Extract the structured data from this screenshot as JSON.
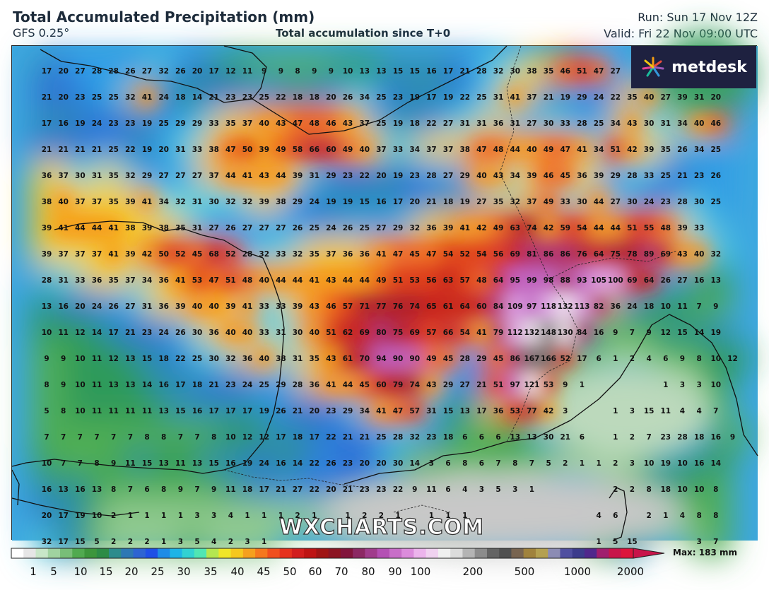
{
  "header": {
    "title": "Total Accumulated Precipitation (mm)",
    "model": "GFS 0.25°",
    "subtitle": "Total accumulation since T+0",
    "run": "Run: Sun 17 Nov 12Z",
    "valid": "Valid: Fri 22 Nov 09:00 UTC"
  },
  "logo": {
    "text": "metdesk"
  },
  "watermark": "WXCHARTS.COM",
  "legend": {
    "max_label": "Max: 183 mm",
    "tick_labels": [
      "1",
      "5",
      "10",
      "15",
      "20",
      "25",
      "30",
      "35",
      "40",
      "45",
      "50",
      "60",
      "70",
      "80",
      "90",
      "100",
      "200",
      "500",
      "1000",
      "2000"
    ]
  },
  "grid": {
    "rows": [
      [
        "17",
        "20",
        "27",
        "28",
        "28",
        "26",
        "27",
        "32",
        "26",
        "20",
        "17",
        "12",
        "11",
        "9",
        "9",
        "8",
        "9",
        "9",
        "10",
        "13",
        "13",
        "15",
        "15",
        "16",
        "17",
        "21",
        "28",
        "32",
        "30",
        "38",
        "35",
        "46",
        "51",
        "47",
        "27",
        "",
        "",
        "",
        "",
        ""
      ],
      [
        "21",
        "20",
        "23",
        "25",
        "25",
        "32",
        "41",
        "24",
        "18",
        "14",
        "21",
        "23",
        "23",
        "25",
        "22",
        "18",
        "18",
        "20",
        "26",
        "34",
        "25",
        "23",
        "19",
        "17",
        "19",
        "22",
        "25",
        "31",
        "41",
        "37",
        "21",
        "19",
        "29",
        "24",
        "22",
        "35",
        "40",
        "27",
        "39",
        "31",
        "20"
      ],
      [
        "17",
        "16",
        "19",
        "24",
        "23",
        "23",
        "19",
        "25",
        "29",
        "29",
        "33",
        "35",
        "37",
        "40",
        "43",
        "47",
        "48",
        "46",
        "43",
        "37",
        "25",
        "19",
        "18",
        "22",
        "27",
        "31",
        "31",
        "36",
        "31",
        "27",
        "30",
        "33",
        "28",
        "25",
        "34",
        "43",
        "30",
        "31",
        "34",
        "40",
        "46"
      ],
      [
        "21",
        "21",
        "21",
        "21",
        "25",
        "22",
        "19",
        "20",
        "31",
        "33",
        "38",
        "47",
        "50",
        "39",
        "49",
        "58",
        "66",
        "60",
        "49",
        "40",
        "37",
        "33",
        "34",
        "37",
        "37",
        "38",
        "47",
        "48",
        "44",
        "40",
        "49",
        "47",
        "41",
        "34",
        "51",
        "42",
        "39",
        "35",
        "26",
        "34",
        "25"
      ],
      [
        "36",
        "37",
        "30",
        "31",
        "35",
        "32",
        "29",
        "27",
        "27",
        "27",
        "37",
        "44",
        "41",
        "43",
        "44",
        "39",
        "31",
        "29",
        "23",
        "22",
        "20",
        "19",
        "23",
        "28",
        "27",
        "29",
        "40",
        "43",
        "34",
        "39",
        "46",
        "45",
        "36",
        "39",
        "29",
        "28",
        "33",
        "25",
        "21",
        "23",
        "26"
      ],
      [
        "38",
        "40",
        "37",
        "37",
        "35",
        "39",
        "41",
        "34",
        "32",
        "31",
        "30",
        "32",
        "32",
        "39",
        "38",
        "29",
        "24",
        "19",
        "19",
        "15",
        "16",
        "17",
        "20",
        "21",
        "18",
        "19",
        "27",
        "35",
        "32",
        "37",
        "49",
        "33",
        "30",
        "44",
        "27",
        "30",
        "24",
        "23",
        "28",
        "30",
        "25"
      ],
      [
        "39",
        "41",
        "44",
        "44",
        "41",
        "38",
        "39",
        "38",
        "35",
        "31",
        "27",
        "26",
        "27",
        "27",
        "27",
        "26",
        "25",
        "24",
        "26",
        "25",
        "27",
        "29",
        "32",
        "36",
        "39",
        "41",
        "42",
        "49",
        "63",
        "74",
        "42",
        "59",
        "54",
        "44",
        "44",
        "51",
        "55",
        "48",
        "39",
        "33"
      ],
      [
        "39",
        "37",
        "37",
        "37",
        "41",
        "39",
        "42",
        "50",
        "52",
        "45",
        "68",
        "52",
        "28",
        "32",
        "33",
        "32",
        "35",
        "37",
        "36",
        "36",
        "41",
        "47",
        "45",
        "47",
        "54",
        "52",
        "54",
        "56",
        "69",
        "81",
        "86",
        "86",
        "76",
        "64",
        "75",
        "78",
        "89",
        "69",
        "43",
        "40",
        "32"
      ],
      [
        "28",
        "31",
        "33",
        "36",
        "35",
        "37",
        "34",
        "36",
        "41",
        "53",
        "47",
        "51",
        "48",
        "40",
        "44",
        "44",
        "41",
        "43",
        "44",
        "44",
        "49",
        "51",
        "53",
        "56",
        "63",
        "57",
        "48",
        "64",
        "95",
        "99",
        "98",
        "88",
        "93",
        "105",
        "100",
        "69",
        "64",
        "26",
        "27",
        "16",
        "13"
      ],
      [
        "13",
        "16",
        "20",
        "24",
        "26",
        "27",
        "31",
        "36",
        "39",
        "40",
        "40",
        "39",
        "41",
        "33",
        "33",
        "39",
        "43",
        "46",
        "57",
        "71",
        "77",
        "76",
        "74",
        "65",
        "61",
        "64",
        "60",
        "84",
        "109",
        "97",
        "118",
        "132",
        "113",
        "82",
        "36",
        "24",
        "18",
        "10",
        "11",
        "7",
        "9"
      ],
      [
        "10",
        "11",
        "12",
        "14",
        "17",
        "21",
        "23",
        "24",
        "26",
        "30",
        "36",
        "40",
        "40",
        "33",
        "31",
        "30",
        "40",
        "51",
        "62",
        "69",
        "80",
        "75",
        "69",
        "57",
        "66",
        "54",
        "41",
        "79",
        "112",
        "132",
        "148",
        "130",
        "84",
        "16",
        "9",
        "7",
        "9",
        "12",
        "15",
        "14",
        "19"
      ],
      [
        "9",
        "9",
        "10",
        "11",
        "12",
        "13",
        "15",
        "18",
        "22",
        "25",
        "30",
        "32",
        "36",
        "40",
        "38",
        "31",
        "35",
        "43",
        "61",
        "70",
        "94",
        "90",
        "90",
        "49",
        "45",
        "28",
        "29",
        "45",
        "86",
        "167",
        "166",
        "52",
        "17",
        "6",
        "1",
        "2",
        "4",
        "6",
        "9",
        "8",
        "10",
        "12"
      ],
      [
        "8",
        "9",
        "10",
        "11",
        "13",
        "13",
        "14",
        "16",
        "17",
        "18",
        "21",
        "23",
        "24",
        "25",
        "29",
        "28",
        "36",
        "41",
        "44",
        "45",
        "60",
        "79",
        "74",
        "43",
        "29",
        "27",
        "21",
        "51",
        "97",
        "121",
        "53",
        "9",
        "1",
        "",
        "",
        "",
        "",
        "1",
        "3",
        "3",
        "10"
      ],
      [
        "5",
        "8",
        "10",
        "11",
        "11",
        "11",
        "11",
        "13",
        "15",
        "16",
        "17",
        "17",
        "17",
        "19",
        "26",
        "21",
        "20",
        "23",
        "29",
        "34",
        "41",
        "47",
        "57",
        "31",
        "15",
        "13",
        "17",
        "36",
        "53",
        "77",
        "42",
        "3",
        "",
        "",
        "1",
        "3",
        "15",
        "11",
        "4",
        "4",
        "7"
      ],
      [
        "7",
        "7",
        "7",
        "7",
        "7",
        "7",
        "8",
        "8",
        "7",
        "7",
        "8",
        "10",
        "12",
        "12",
        "17",
        "18",
        "17",
        "22",
        "21",
        "21",
        "25",
        "28",
        "32",
        "23",
        "18",
        "6",
        "6",
        "6",
        "13",
        "13",
        "30",
        "21",
        "6",
        "",
        "1",
        "2",
        "7",
        "23",
        "28",
        "18",
        "16",
        "9"
      ],
      [
        "10",
        "7",
        "7",
        "8",
        "9",
        "11",
        "15",
        "13",
        "11",
        "13",
        "15",
        "16",
        "19",
        "24",
        "16",
        "14",
        "22",
        "26",
        "23",
        "20",
        "20",
        "30",
        "14",
        "3",
        "6",
        "8",
        "6",
        "7",
        "8",
        "7",
        "5",
        "2",
        "1",
        "1",
        "2",
        "3",
        "10",
        "19",
        "10",
        "16",
        "14"
      ],
      [
        "16",
        "13",
        "16",
        "13",
        "8",
        "7",
        "6",
        "8",
        "9",
        "7",
        "9",
        "11",
        "18",
        "17",
        "21",
        "27",
        "22",
        "20",
        "21",
        "23",
        "23",
        "22",
        "9",
        "11",
        "6",
        "4",
        "3",
        "5",
        "3",
        "1",
        "",
        "",
        "",
        "",
        "2",
        "2",
        "8",
        "18",
        "10",
        "10",
        "8"
      ],
      [
        "20",
        "17",
        "19",
        "10",
        "2",
        "1",
        "1",
        "1",
        "1",
        "3",
        "3",
        "4",
        "1",
        "1",
        "1",
        "2",
        "1",
        "",
        "1",
        "2",
        "2",
        "1",
        "",
        "1",
        "1",
        "1",
        "",
        "",
        "",
        "",
        "",
        "",
        "",
        "4",
        "6",
        "",
        "2",
        "1",
        "4",
        "8",
        "8"
      ],
      [
        "32",
        "17",
        "15",
        "5",
        "2",
        "2",
        "2",
        "1",
        "3",
        "5",
        "4",
        "2",
        "3",
        "1",
        "",
        "",
        "",
        "",
        "",
        "",
        "",
        "",
        "",
        "",
        "",
        "",
        "",
        "",
        "",
        "",
        "",
        "",
        "",
        "1",
        "5",
        "15",
        "",
        "",
        "",
        "3",
        "7"
      ]
    ]
  }
}
